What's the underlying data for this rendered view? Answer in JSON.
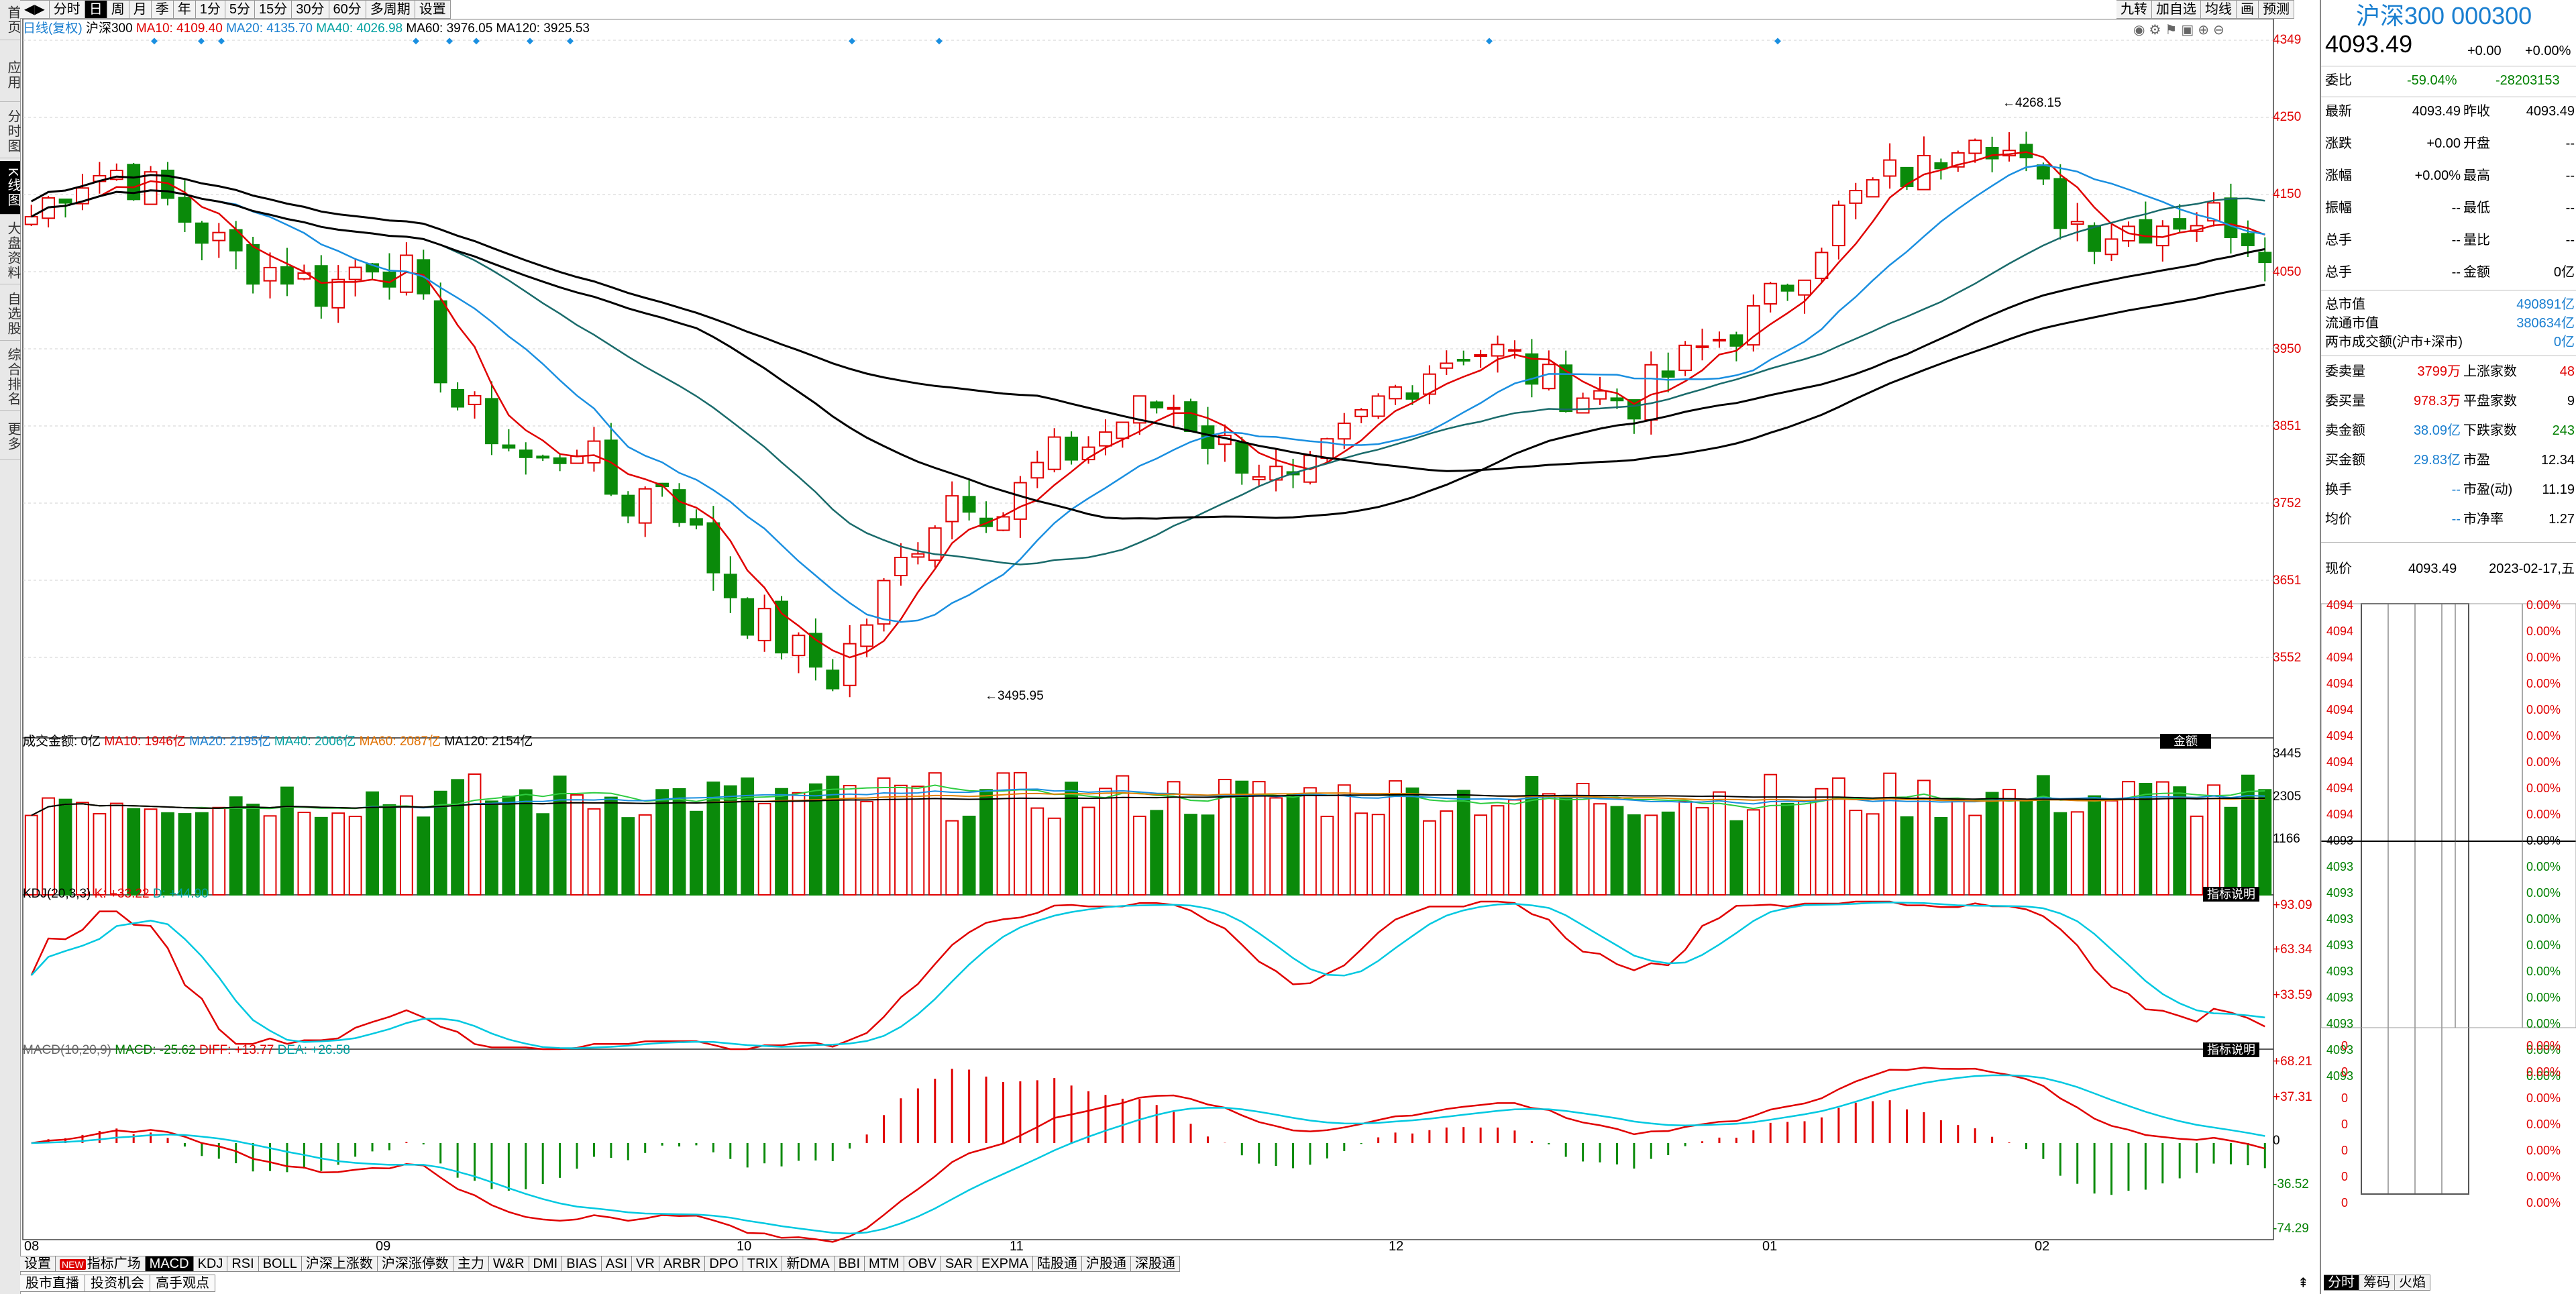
{
  "leftbar": [
    "首页",
    "应用",
    "分时图",
    "K线图",
    "大盘资料",
    "自选股",
    "综合排名",
    "更多"
  ],
  "toptabs": [
    "分时",
    "日",
    "周",
    "月",
    "季",
    "年",
    "1分",
    "5分",
    "15分",
    "30分",
    "60分",
    "多周期",
    "设置"
  ],
  "rtabs": [
    "九转",
    "加自选",
    "均线",
    "画",
    "预测"
  ],
  "legend": {
    "period": "日线(复权)",
    "name": "沪深300",
    "ma10": "MA10: 4109.40",
    "ma20": "MA20: 4135.70",
    "ma40": "MA40: 4026.98",
    "ma60": "MA60: 3976.05",
    "ma120": "MA120: 3925.53"
  },
  "price_axis": [
    "4349",
    "4250",
    "4150",
    "4050",
    "3950",
    "3851",
    "3752",
    "3651",
    "3552"
  ],
  "annot_high": "4268.15",
  "annot_low": "3495.95",
  "vol": {
    "label": "成交金额: 0亿",
    "ma10": "MA10: 1946亿",
    "ma20": "MA20: 2195亿",
    "ma40": "MA40: 2006亿",
    "ma60": "MA60: 2087亿",
    "ma120": "MA120: 2154亿",
    "btn": "金额",
    "axis": [
      "3445",
      "2305",
      "1166"
    ]
  },
  "kdj": {
    "label": "KDJ(20,3,3)",
    "k": "K: +33.22",
    "d": "D: +44.90",
    "btn": "指标说明",
    "axis": [
      "+93.09",
      "+63.34",
      "+33.59"
    ]
  },
  "macd": {
    "label": "MACD(10,20,9)",
    "macd": "MACD: -25.62",
    "diff": "DIFF: +13.77",
    "dea": "DEA: +26.58",
    "btn": "指标说明",
    "axis": [
      "+68.21",
      "+37.31",
      "0",
      "-36.52",
      "-74.29"
    ]
  },
  "xaxis": [
    "08",
    "09",
    "10",
    "11",
    "12",
    "01",
    "02"
  ],
  "bottomnav": [
    "设置",
    "指标广场",
    "MACD",
    "KDJ",
    "RSI",
    "BOLL",
    "沪深上涨数",
    "沪深涨停数",
    "主力",
    "W&R",
    "DMI",
    "BIAS",
    "ASI",
    "VR",
    "ARBR",
    "DPO",
    "TRIX",
    "新DMA",
    "BBI",
    "MTM",
    "OBV",
    "SAR",
    "EXPMA",
    "陆股通",
    "沪股通",
    "深股通"
  ],
  "new_badge": "NEW",
  "bottom2": [
    "股市直播",
    "投资机会",
    "高手观点"
  ],
  "right": {
    "title": "沪深300 000300",
    "price": "4093.49",
    "chg": "+0.00",
    "pct": "+0.00%",
    "weibi_label": "委比",
    "weibi": "-59.04%",
    "weicha": "-28203153",
    "rows": [
      {
        "l1": "最新",
        "v1": "4093.49",
        "l2": "昨收",
        "v2": "4093.49"
      },
      {
        "l1": "涨跌",
        "v1": "+0.00",
        "l2": "开盘",
        "v2": "--"
      },
      {
        "l1": "涨幅",
        "v1": "+0.00%",
        "l2": "最高",
        "v2": "--"
      },
      {
        "l1": "振幅",
        "v1": "--",
        "l2": "最低",
        "v2": "--"
      },
      {
        "l1": "总手",
        "v1": "--",
        "l2": "量比",
        "v2": "--"
      },
      {
        "l1": "总手",
        "v1": "--",
        "l2": "金额",
        "v2": "0亿"
      }
    ],
    "zsz_label": "总市值",
    "zsz": "490891亿",
    "ltsz_label": "流通市值",
    "ltsz": "380634亿",
    "lscj_label": "两市成交额(沪市+深市)",
    "lscj": "0亿",
    "rows2": [
      {
        "l1": "委卖量",
        "v1": "3799万",
        "l2": "上涨家数",
        "v2": "48"
      },
      {
        "l1": "委买量",
        "v1": "978.3万",
        "l2": "平盘家数",
        "v2": "9"
      },
      {
        "l1": "卖金额",
        "v1": "38.09亿",
        "l2": "下跌家数",
        "v2": "243"
      },
      {
        "l1": "买金额",
        "v1": "29.83亿",
        "l2": "市盈",
        "v2": "12.34"
      },
      {
        "l1": "换手",
        "v1": "--",
        "l2": "市盈(动)",
        "v2": "11.19"
      },
      {
        "l1": "均价",
        "v1": "--",
        "l2": "市净率",
        "v2": "1.27"
      }
    ],
    "now_label": "现价",
    "now": "4093.49",
    "date": "2023-02-17,五",
    "ladder_prices": [
      "4094",
      "4094",
      "4094",
      "4094",
      "4094",
      "4094",
      "4094",
      "4094",
      "4094",
      "4093",
      "4093",
      "4093",
      "4093",
      "4093",
      "4093",
      "4093",
      "4093",
      "4093",
      "4093"
    ],
    "ladder_pct": [
      "0.00%",
      "0.00%",
      "0.00%",
      "0.00%",
      "0.00%",
      "0.00%",
      "0.00%",
      "0.00%",
      "0.00%",
      "0.00%",
      "0.00%",
      "0.00%",
      "0.00%",
      "0.00%",
      "0.00%",
      "0.00%",
      "0.00%",
      "0.00%",
      "0.00%"
    ],
    "ladder_right_prices": [
      "0",
      "0",
      "0",
      "0",
      "0",
      "0",
      "0"
    ],
    "ladder_right_pct": [
      "0.00%",
      "0.00%",
      "0.00%",
      "0.00%",
      "0.00%",
      "0.00%",
      "0.00%"
    ],
    "tabs": [
      "分时",
      "筹码",
      "火焰"
    ]
  },
  "colors": {
    "up": "#e00000",
    "down": "#0a8a0a",
    "ma10": "#e00000",
    "ma20": "#1a8fe0",
    "ma40": "#1a6b6b",
    "ma60": "#000000",
    "ma120": "#000000",
    "kline": "#e00000",
    "dline": "#00c8e0"
  }
}
